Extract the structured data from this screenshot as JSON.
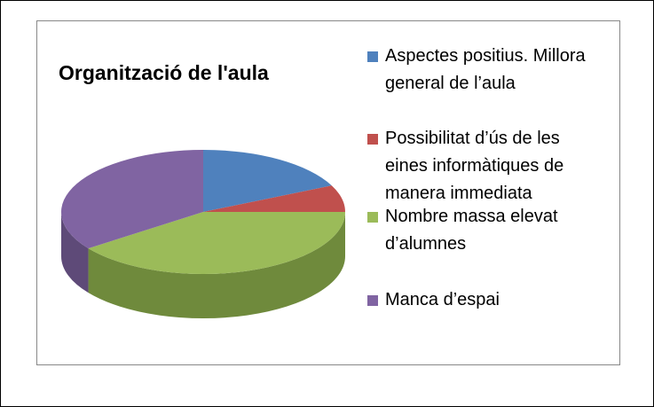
{
  "chart_data": {
    "type": "pie3d",
    "title": "Organització de l'aula",
    "categories": [
      "Aspectes positius. Millora general de l’aula",
      "Possibilitat d’ús de les eines informàtiques de manera immediata",
      "Nombre massa elevat d’alumnes",
      "Manca d’espai"
    ],
    "values": [
      18,
      7,
      40,
      35
    ],
    "colors": [
      "#4f81bd",
      "#c0504d",
      "#9bbb59",
      "#8064a2"
    ],
    "side_colors": [
      "#3a5f8c",
      "#8e3b39",
      "#6f8a3c",
      "#5e4a78"
    ]
  }
}
